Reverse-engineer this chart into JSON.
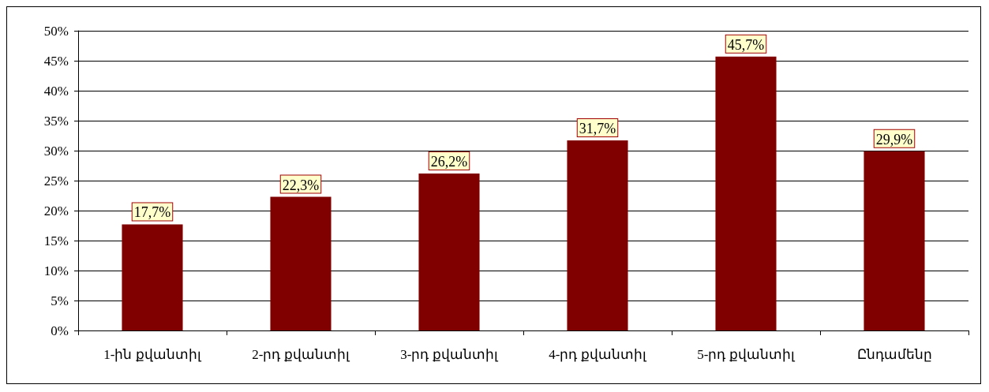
{
  "chart_data": {
    "type": "bar",
    "categories": [
      "1-ին քվանտիլ",
      "2-րդ քվանտիլ",
      "3-րդ քվանտիլ",
      "4-րդ քվանտիլ",
      "5-րդ քվանտիլ",
      "Ընդամենը"
    ],
    "values": [
      17.7,
      22.3,
      26.2,
      31.7,
      45.7,
      29.9
    ],
    "value_labels": [
      "17,7%",
      "22,3%",
      "26,2%",
      "31,7%",
      "45,7%",
      "29,9%"
    ],
    "color": "#800000",
    "ylim": [
      0,
      50
    ],
    "yticks": [
      {
        "value": 0,
        "label": "0%"
      },
      {
        "value": 5,
        "label": "5%"
      },
      {
        "value": 10,
        "label": "10%"
      },
      {
        "value": 15,
        "label": "15%"
      },
      {
        "value": 20,
        "label": "20%"
      },
      {
        "value": 25,
        "label": "25%"
      },
      {
        "value": 30,
        "label": "30%"
      },
      {
        "value": 35,
        "label": "35%"
      },
      {
        "value": 40,
        "label": "40%"
      },
      {
        "value": 45,
        "label": "45%"
      },
      {
        "value": 50,
        "label": "50%"
      }
    ],
    "grid": "y"
  }
}
